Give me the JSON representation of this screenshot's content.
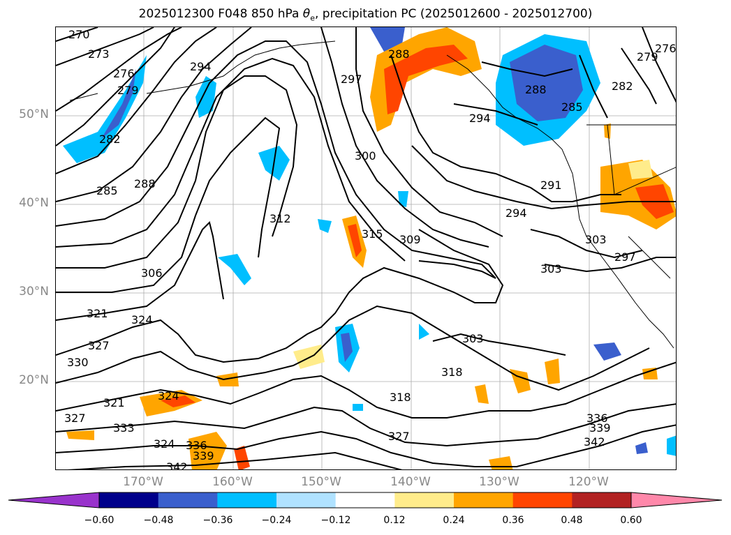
{
  "title": {
    "prefix": "2025012300 F048 850 hPa ",
    "theta_symbol": "θ",
    "theta_sub": "e",
    "suffix": ", precipitation PC (2025012600 - 2025012700)"
  },
  "axes": {
    "lat_labels": [
      "50°N",
      "40°N",
      "30°N",
      "20°N"
    ],
    "lon_labels": [
      "170°W",
      "160°W",
      "150°W",
      "140°W",
      "130°W",
      "120°W"
    ]
  },
  "colorbar": {
    "colors": [
      "#9933cc",
      "#00008b",
      "#3a5fcd",
      "#00bfff",
      "#b0e2ff",
      "#ffffff",
      "#ffec8b",
      "#ffa500",
      "#ff4500",
      "#b22222",
      "#ff88aa"
    ],
    "ticks": [
      "−0.60",
      "−0.48",
      "−0.36",
      "−0.24",
      "−0.12",
      "0.12",
      "0.24",
      "0.36",
      "0.48",
      "0.60"
    ]
  },
  "contour_labels": [
    "270",
    "273",
    "276",
    "279",
    "282",
    "285",
    "288",
    "294",
    "297",
    "300",
    "306",
    "312",
    "315",
    "309",
    "303",
    "318",
    "321",
    "324",
    "327",
    "330",
    "333",
    "336",
    "339",
    "342",
    "291"
  ]
}
